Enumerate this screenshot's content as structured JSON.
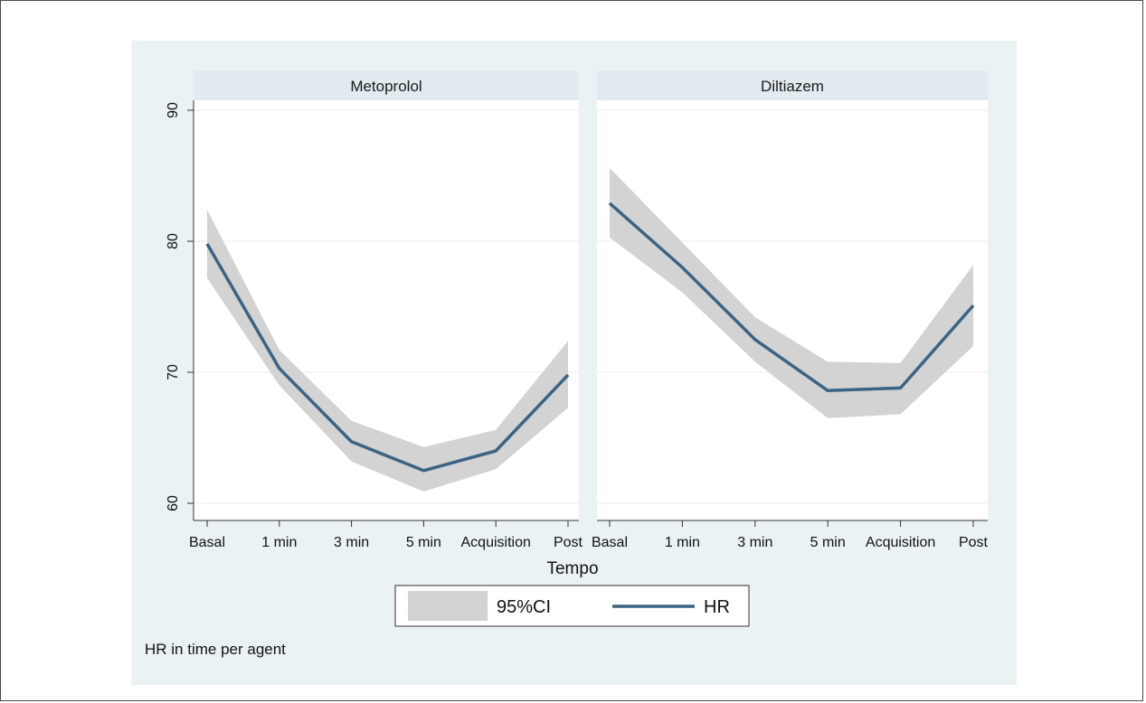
{
  "chart_data": {
    "type": "line",
    "categories": [
      "Basal",
      "1 min",
      "3 min",
      "5 min",
      "Acquisition",
      "Post"
    ],
    "xlabel": "Tempo",
    "ylabel": "",
    "ylim": [
      60,
      90
    ],
    "yticks": [
      "60",
      "70",
      "80",
      "90"
    ],
    "grid": true,
    "legend": {
      "placement": "bottom",
      "entries": [
        "95%CI",
        "HR"
      ]
    },
    "note": "HR in time per agent",
    "colors": {
      "line": "#3a6384",
      "band": "#d3d3d3",
      "outer_background": "#eaf2f3",
      "plot_background": "#ffffff",
      "strip": "#e2ebf0"
    },
    "panels": [
      {
        "title": "Metoprolol",
        "series": [
          {
            "name": "HR",
            "values": [
              79.8,
              70.3,
              64.7,
              62.5,
              64.0,
              69.8
            ]
          },
          {
            "name": "95%CI",
            "lower": [
              77.2,
              69.0,
              63.2,
              60.9,
              62.6,
              67.3
            ],
            "upper": [
              82.4,
              71.7,
              66.3,
              64.3,
              65.6,
              72.4
            ]
          }
        ]
      },
      {
        "title": "Diltiazem",
        "series": [
          {
            "name": "HR",
            "values": [
              82.9,
              78.0,
              72.5,
              68.6,
              68.8,
              75.1
            ]
          },
          {
            "name": "95%CI",
            "lower": [
              80.3,
              76.1,
              70.8,
              66.5,
              66.8,
              72.0
            ],
            "upper": [
              85.6,
              79.9,
              74.2,
              70.8,
              70.7,
              78.2
            ]
          }
        ]
      }
    ]
  }
}
